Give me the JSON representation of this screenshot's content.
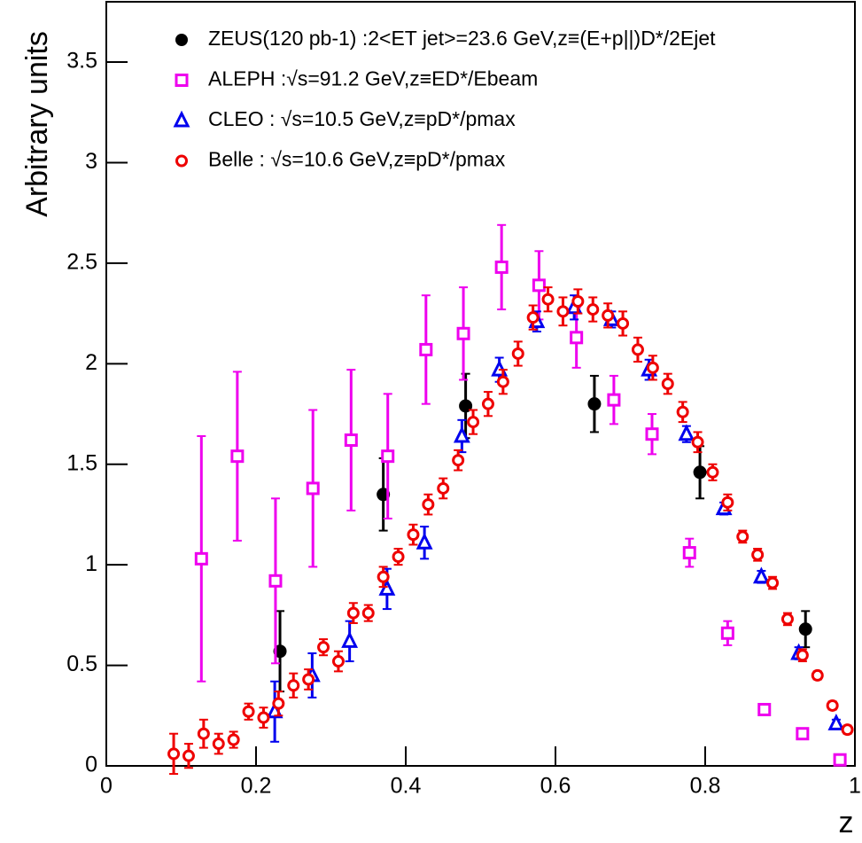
{
  "chart_data": {
    "type": "scatter",
    "xlabel": "z",
    "ylabel": "Arbitrary units",
    "xlim": [
      0,
      1
    ],
    "ylim": [
      0,
      3.8
    ],
    "xticks": [
      0,
      0.2,
      0.4,
      0.6,
      0.8,
      1
    ],
    "yticks": [
      0,
      0.5,
      1,
      1.5,
      2,
      2.5,
      3,
      3.5
    ],
    "legend": "upper right",
    "series": [
      {
        "name": "ZEUS(120 pb-1) :2<ET jet>=23.6 GeV,z≡(E+p||)D*/2Ejet",
        "color": "#000000",
        "marker": "filled-circle",
        "x": [
          0.232,
          0.37,
          0.48,
          0.652,
          0.793,
          0.934
        ],
        "values": [
          0.57,
          1.35,
          1.79,
          1.8,
          1.46,
          0.68
        ],
        "errors": [
          0.2,
          0.18,
          0.16,
          0.14,
          0.13,
          0.09
        ]
      },
      {
        "name": "ALEPH :√s=91.2 GeV,z≡ED*/Ebeam",
        "color": "#ee00ee",
        "marker": "open-square",
        "x": [
          0.127,
          0.175,
          0.226,
          0.276,
          0.327,
          0.376,
          0.427,
          0.477,
          0.528,
          0.578,
          0.628,
          0.678,
          0.729,
          0.779,
          0.83,
          0.879,
          0.93,
          0.98
        ],
        "values": [
          1.03,
          1.54,
          0.92,
          1.38,
          1.62,
          1.54,
          2.07,
          2.15,
          2.48,
          2.39,
          2.13,
          1.82,
          1.65,
          1.06,
          0.66,
          0.28,
          0.16,
          0.03
        ],
        "errors": [
          0.61,
          0.42,
          0.41,
          0.39,
          0.35,
          0.31,
          0.27,
          0.23,
          0.21,
          0.17,
          0.15,
          0.12,
          0.1,
          0.07,
          0.06,
          0.02,
          0.02,
          0.01
        ]
      },
      {
        "name": "CLEO : √s=10.5 GeV,z≡pD*/pmax",
        "color": "#0000ee",
        "marker": "open-triangle",
        "x": [
          0.225,
          0.275,
          0.325,
          0.375,
          0.425,
          0.475,
          0.525,
          0.575,
          0.625,
          0.675,
          0.725,
          0.775,
          0.825,
          0.875,
          0.925,
          0.975
        ],
        "values": [
          0.27,
          0.45,
          0.62,
          0.88,
          1.11,
          1.64,
          1.97,
          2.21,
          2.28,
          2.22,
          1.97,
          1.65,
          1.28,
          0.94,
          0.56,
          0.21
        ],
        "errors": [
          0.15,
          0.11,
          0.1,
          0.1,
          0.08,
          0.08,
          0.06,
          0.05,
          0.06,
          0.04,
          0.05,
          0.04,
          0.03,
          0.03,
          0.03,
          0.02
        ]
      },
      {
        "name": "Belle : √s=10.6 GeV,z≡pD*/pmax",
        "color": "#ee0000",
        "marker": "open-circle",
        "x": [
          0.09,
          0.11,
          0.13,
          0.15,
          0.17,
          0.19,
          0.21,
          0.23,
          0.25,
          0.27,
          0.29,
          0.31,
          0.33,
          0.35,
          0.37,
          0.39,
          0.41,
          0.43,
          0.45,
          0.47,
          0.49,
          0.51,
          0.53,
          0.55,
          0.57,
          0.59,
          0.61,
          0.63,
          0.65,
          0.67,
          0.69,
          0.71,
          0.73,
          0.75,
          0.77,
          0.79,
          0.81,
          0.83,
          0.85,
          0.87,
          0.89,
          0.91,
          0.93,
          0.95,
          0.97,
          0.99
        ],
        "values": [
          0.06,
          0.05,
          0.16,
          0.11,
          0.13,
          0.27,
          0.24,
          0.31,
          0.4,
          0.43,
          0.59,
          0.52,
          0.76,
          0.76,
          0.94,
          1.04,
          1.15,
          1.3,
          1.38,
          1.52,
          1.71,
          1.8,
          1.91,
          2.05,
          2.23,
          2.32,
          2.26,
          2.31,
          2.27,
          2.24,
          2.2,
          2.07,
          1.98,
          1.9,
          1.76,
          1.61,
          1.46,
          1.31,
          1.14,
          1.05,
          0.91,
          0.73,
          0.55,
          0.45,
          0.3,
          0.18
        ],
        "errors": [
          0.1,
          0.06,
          0.07,
          0.05,
          0.04,
          0.04,
          0.05,
          0.06,
          0.06,
          0.05,
          0.04,
          0.05,
          0.05,
          0.04,
          0.05,
          0.04,
          0.05,
          0.05,
          0.05,
          0.05,
          0.06,
          0.06,
          0.06,
          0.06,
          0.06,
          0.06,
          0.07,
          0.06,
          0.06,
          0.06,
          0.06,
          0.06,
          0.06,
          0.05,
          0.05,
          0.05,
          0.04,
          0.04,
          0.03,
          0.03,
          0.03,
          0.03,
          0.03,
          0.02,
          0.02,
          0.02
        ]
      }
    ]
  }
}
